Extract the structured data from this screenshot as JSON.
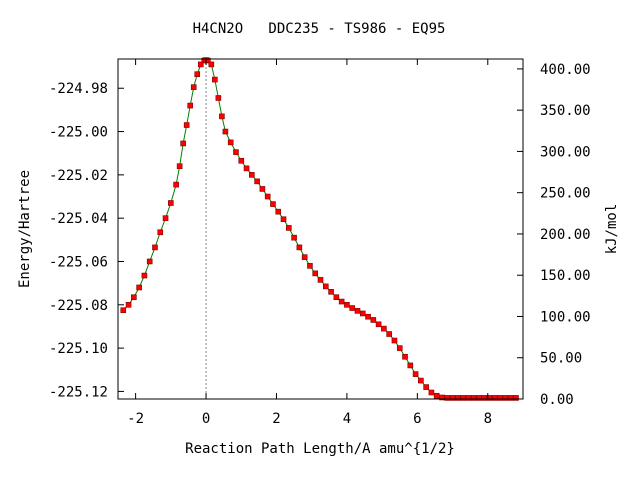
{
  "chart_data": {
    "type": "line",
    "title": "H4CN2O   DDC235 - TS986 - EQ95",
    "xlabel": "Reaction Path Length/A amu^{1/2}",
    "ylabel": "Energy/Hartree",
    "y2label": "kJ/mol",
    "xlim": [
      -2.5,
      9
    ],
    "ylim": [
      -225.1235,
      -224.9665
    ],
    "y2lim": [
      0,
      412
    ],
    "x_ticks": [
      -2,
      0,
      2,
      4,
      6,
      8
    ],
    "x_tick_labels": [
      "-2",
      "0",
      "2",
      "4",
      "6",
      "8"
    ],
    "y_ticks": [
      -224.98,
      -225.0,
      -225.02,
      -225.04,
      -225.06,
      -225.08,
      -225.1,
      -225.12
    ],
    "y_tick_labels": [
      "-224.98",
      "-225.00",
      "-225.02",
      "-225.04",
      "-225.06",
      "-225.08",
      "-225.10",
      "-225.12"
    ],
    "y2_ticks": [
      400,
      350,
      300,
      250,
      200,
      150,
      100,
      50,
      0
    ],
    "y2_tick_labels": [
      "400.00",
      "350.00",
      "300.00",
      "250.00",
      "200.00",
      "150.00",
      "100.00",
      "50.00",
      "0.00"
    ],
    "ts_x": 0,
    "line_color": "#008000",
    "marker_color": "#ff0000",
    "marker_edge_color": "#800000",
    "ts_line_color": "#888888",
    "series": [
      {
        "x": [
          -2.35,
          -2.2,
          -2.05,
          -1.9,
          -1.75,
          -1.6,
          -1.45,
          -1.3,
          -1.15,
          -1.0,
          -0.85,
          -0.75,
          -0.65,
          -0.55,
          -0.45,
          -0.35,
          -0.25,
          -0.15,
          -0.05,
          0.0,
          0.05,
          0.15,
          0.25,
          0.35,
          0.45,
          0.55,
          0.7,
          0.85,
          1.0,
          1.15,
          1.3,
          1.45,
          1.6,
          1.75,
          1.9,
          2.05,
          2.2,
          2.35,
          2.5,
          2.65,
          2.8,
          2.95,
          3.1,
          3.25,
          3.4,
          3.55,
          3.7,
          3.85,
          4.0,
          4.15,
          4.3,
          4.45,
          4.6,
          4.75,
          4.9,
          5.05,
          5.2,
          5.35,
          5.5,
          5.65,
          5.8,
          5.95,
          6.1,
          6.25,
          6.4,
          6.55,
          6.7,
          6.85,
          7.0,
          7.15,
          7.3,
          7.45,
          7.6,
          7.75,
          7.9,
          8.05,
          8.2,
          8.35,
          8.5,
          8.65,
          8.8
        ],
        "y": [
          -225.0825,
          -225.08,
          -225.0765,
          -225.072,
          -225.0665,
          -225.06,
          -225.0535,
          -225.0465,
          -225.04,
          -225.033,
          -225.0245,
          -225.016,
          -225.0055,
          -224.997,
          -224.988,
          -224.9795,
          -224.9735,
          -224.969,
          -224.9672,
          -224.967,
          -224.9672,
          -224.969,
          -224.976,
          -224.9845,
          -224.993,
          -225.0,
          -225.005,
          -225.0095,
          -225.0135,
          -225.017,
          -225.02,
          -225.023,
          -225.0265,
          -225.03,
          -225.0335,
          -225.037,
          -225.0405,
          -225.0445,
          -225.049,
          -225.0535,
          -225.058,
          -225.062,
          -225.0655,
          -225.0685,
          -225.0715,
          -225.074,
          -225.0765,
          -225.0785,
          -225.08,
          -225.0815,
          -225.0828,
          -225.084,
          -225.0855,
          -225.087,
          -225.089,
          -225.091,
          -225.0935,
          -225.0965,
          -225.1,
          -225.104,
          -225.108,
          -225.112,
          -225.115,
          -225.118,
          -225.1205,
          -225.122,
          -225.1228,
          -225.123,
          -225.123,
          -225.123,
          -225.123,
          -225.123,
          -225.123,
          -225.123,
          -225.123,
          -225.123,
          -225.123,
          -225.123,
          -225.123,
          -225.123,
          -225.123
        ]
      }
    ]
  }
}
